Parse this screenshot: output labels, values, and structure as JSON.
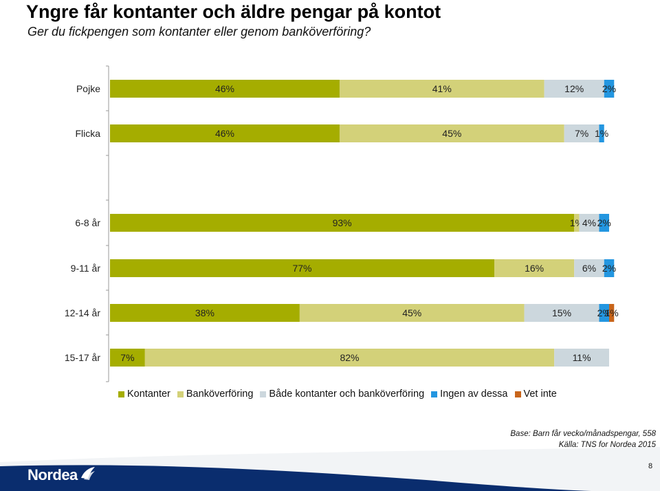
{
  "header": {
    "title": "Yngre får kontanter och äldre pengar på kontot",
    "subtitle": "Ger du fickpengen som kontanter eller genom banköverföring?"
  },
  "chart_data": {
    "type": "bar",
    "orientation": "horizontal",
    "stacked": true,
    "normalized_percent": true,
    "categories": [
      "Pojke",
      "Flicka",
      "6-8 år",
      "9-11 år",
      "12-14 år",
      "15-17 år"
    ],
    "series": [
      {
        "name": "Kontanter",
        "color": "#a5ad00",
        "values": [
          46,
          46,
          93,
          77,
          38,
          7
        ],
        "labels": [
          "46%",
          "46%",
          "93%",
          "77%",
          "38%",
          "7%"
        ]
      },
      {
        "name": "Banköverföring",
        "color": "#d3d179",
        "values": [
          41,
          45,
          1,
          16,
          45,
          82
        ],
        "labels": [
          "41%",
          "45%",
          "1%",
          "16%",
          "45%",
          "82%"
        ]
      },
      {
        "name": "Både kontanter och banköverföring",
        "color": "#ccd7dd",
        "values": [
          12,
          7,
          4,
          6,
          15,
          11
        ],
        "labels": [
          "12%",
          "7%",
          "4%",
          "6%",
          "15%",
          "11%"
        ]
      },
      {
        "name": "Ingen av dessa",
        "color": "#2396e0",
        "values": [
          2,
          1,
          2,
          2,
          2,
          0
        ],
        "labels": [
          "2%",
          "1%",
          "2%",
          "2%",
          "2%",
          ""
        ]
      },
      {
        "name": "Vet inte",
        "color": "#c8651b",
        "values": [
          0,
          0,
          0,
          0,
          1,
          0
        ],
        "labels": [
          "",
          "",
          "",
          "",
          "1%",
          ""
        ]
      }
    ],
    "xlim": [
      0,
      100
    ],
    "legend": "bottom"
  },
  "footer": {
    "base": "Base: Barn får vecko/månadspengar, 558",
    "source": "Källa: TNS for Nordea 2015",
    "page_number": "8",
    "logo_text": "Nordea"
  }
}
